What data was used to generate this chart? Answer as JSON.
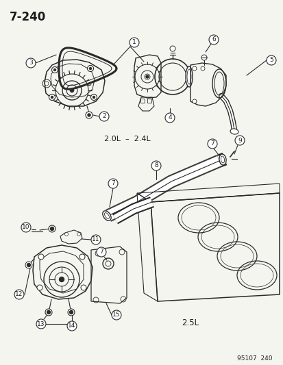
{
  "title": "7-240",
  "footer": "95107  240",
  "label_2ol_24l": "2.0L  –  2.4L",
  "label_25l": "2.5L",
  "bg_color": "#f5f5f0",
  "line_color": "#2a2a2a",
  "text_color": "#1a1a1a",
  "figsize": [
    4.14,
    5.33
  ],
  "dpi": 100,
  "title_fontsize": 12,
  "label_fontsize": 8,
  "circle_r": 7,
  "circle_fontsize": 6.5
}
